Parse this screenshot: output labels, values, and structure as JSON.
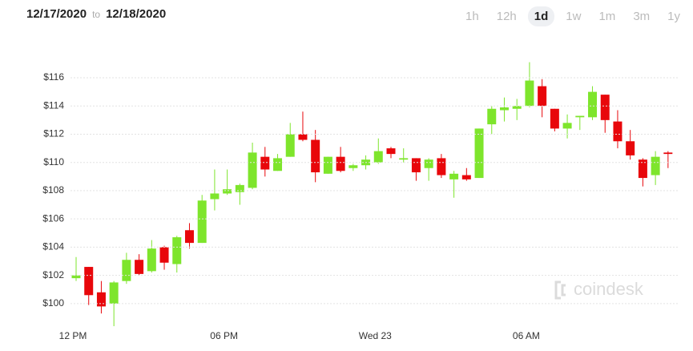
{
  "header": {
    "from": "12/17/2020",
    "separator": "to",
    "to": "12/18/2020",
    "periods": [
      "1h",
      "12h",
      "1d",
      "1w",
      "1m",
      "3m",
      "1y"
    ],
    "active_period": "1d"
  },
  "watermark": "coindesk",
  "chart_data": {
    "type": "candlestick",
    "categories": [
      "12 PM",
      null,
      null,
      null,
      null,
      null,
      null,
      null,
      null,
      null,
      null,
      null,
      "06 PM",
      null,
      null,
      null,
      null,
      null,
      null,
      null,
      null,
      null,
      null,
      null,
      "Wed 23",
      null,
      null,
      null,
      null,
      null,
      null,
      null,
      null,
      null,
      null,
      null,
      "06 AM",
      null,
      null,
      null,
      null,
      null,
      null,
      null,
      null,
      null,
      null,
      null
    ],
    "open": [
      101.8,
      102.6,
      100.8,
      100.0,
      101.6,
      103.1,
      102.3,
      104.0,
      102.8,
      105.2,
      104.3,
      107.4,
      107.8,
      107.9,
      108.2,
      110.4,
      109.4,
      110.4,
      112.0,
      111.6,
      109.2,
      110.4,
      109.6,
      109.8,
      110.0,
      111.0,
      110.2,
      110.3,
      109.6,
      110.3,
      108.8,
      109.1,
      108.9,
      112.7,
      113.7,
      113.8,
      114.0,
      115.4,
      113.8,
      112.4,
      113.2,
      113.2,
      114.8,
      112.9,
      111.5,
      110.2,
      109.1,
      110.7
    ],
    "high": [
      103.3,
      102.6,
      101.6,
      101.6,
      103.6,
      103.5,
      104.5,
      104.1,
      104.8,
      105.7,
      107.7,
      109.5,
      109.5,
      108.5,
      111.4,
      111.1,
      110.6,
      112.8,
      113.6,
      112.3,
      110.4,
      111.1,
      109.9,
      110.5,
      111.7,
      111.1,
      111.0,
      110.3,
      110.3,
      110.6,
      109.4,
      109.6,
      112.4,
      114.0,
      114.6,
      114.5,
      117.1,
      115.9,
      113.8,
      113.4,
      113.3,
      115.4,
      114.8,
      113.7,
      112.3,
      110.3,
      110.8,
      110.8
    ],
    "low": [
      101.6,
      99.9,
      99.3,
      98.4,
      101.4,
      102.0,
      102.2,
      102.4,
      102.2,
      103.9,
      104.3,
      106.6,
      107.7,
      107.0,
      108.1,
      109.0,
      109.4,
      110.4,
      111.5,
      108.6,
      109.2,
      109.3,
      109.4,
      109.5,
      109.9,
      110.3,
      110.0,
      108.7,
      108.7,
      108.9,
      107.5,
      108.7,
      108.9,
      112.0,
      112.9,
      113.0,
      113.9,
      113.2,
      112.2,
      111.7,
      112.3,
      113.0,
      112.1,
      111.0,
      110.2,
      108.3,
      108.4,
      109.6
    ],
    "close": [
      102.0,
      100.6,
      99.8,
      101.5,
      103.1,
      102.1,
      103.9,
      102.9,
      104.7,
      104.3,
      107.3,
      107.8,
      108.1,
      108.4,
      110.7,
      109.5,
      110.3,
      112.0,
      111.6,
      109.3,
      110.4,
      109.4,
      109.8,
      110.2,
      110.8,
      110.6,
      110.3,
      109.3,
      110.2,
      109.1,
      109.2,
      108.8,
      112.4,
      113.8,
      113.9,
      114.0,
      115.8,
      114.0,
      112.4,
      112.8,
      113.3,
      115.0,
      113.0,
      111.5,
      110.5,
      108.9,
      110.4,
      110.6
    ],
    "up_color": "#7ee52c",
    "down_color": "#e8070b",
    "ylim": [
      98.8,
      118.1
    ],
    "yticks": [
      {
        "value": 100,
        "label": "$100"
      },
      {
        "value": 102,
        "label": "$102"
      },
      {
        "value": 104,
        "label": "$104"
      },
      {
        "value": 106,
        "label": "$106"
      },
      {
        "value": 108,
        "label": "$108"
      },
      {
        "value": 110,
        "label": "$110"
      },
      {
        "value": 112,
        "label": "$112"
      },
      {
        "value": 114,
        "label": "$114"
      },
      {
        "value": 116,
        "label": "$116"
      }
    ],
    "grid": true
  }
}
